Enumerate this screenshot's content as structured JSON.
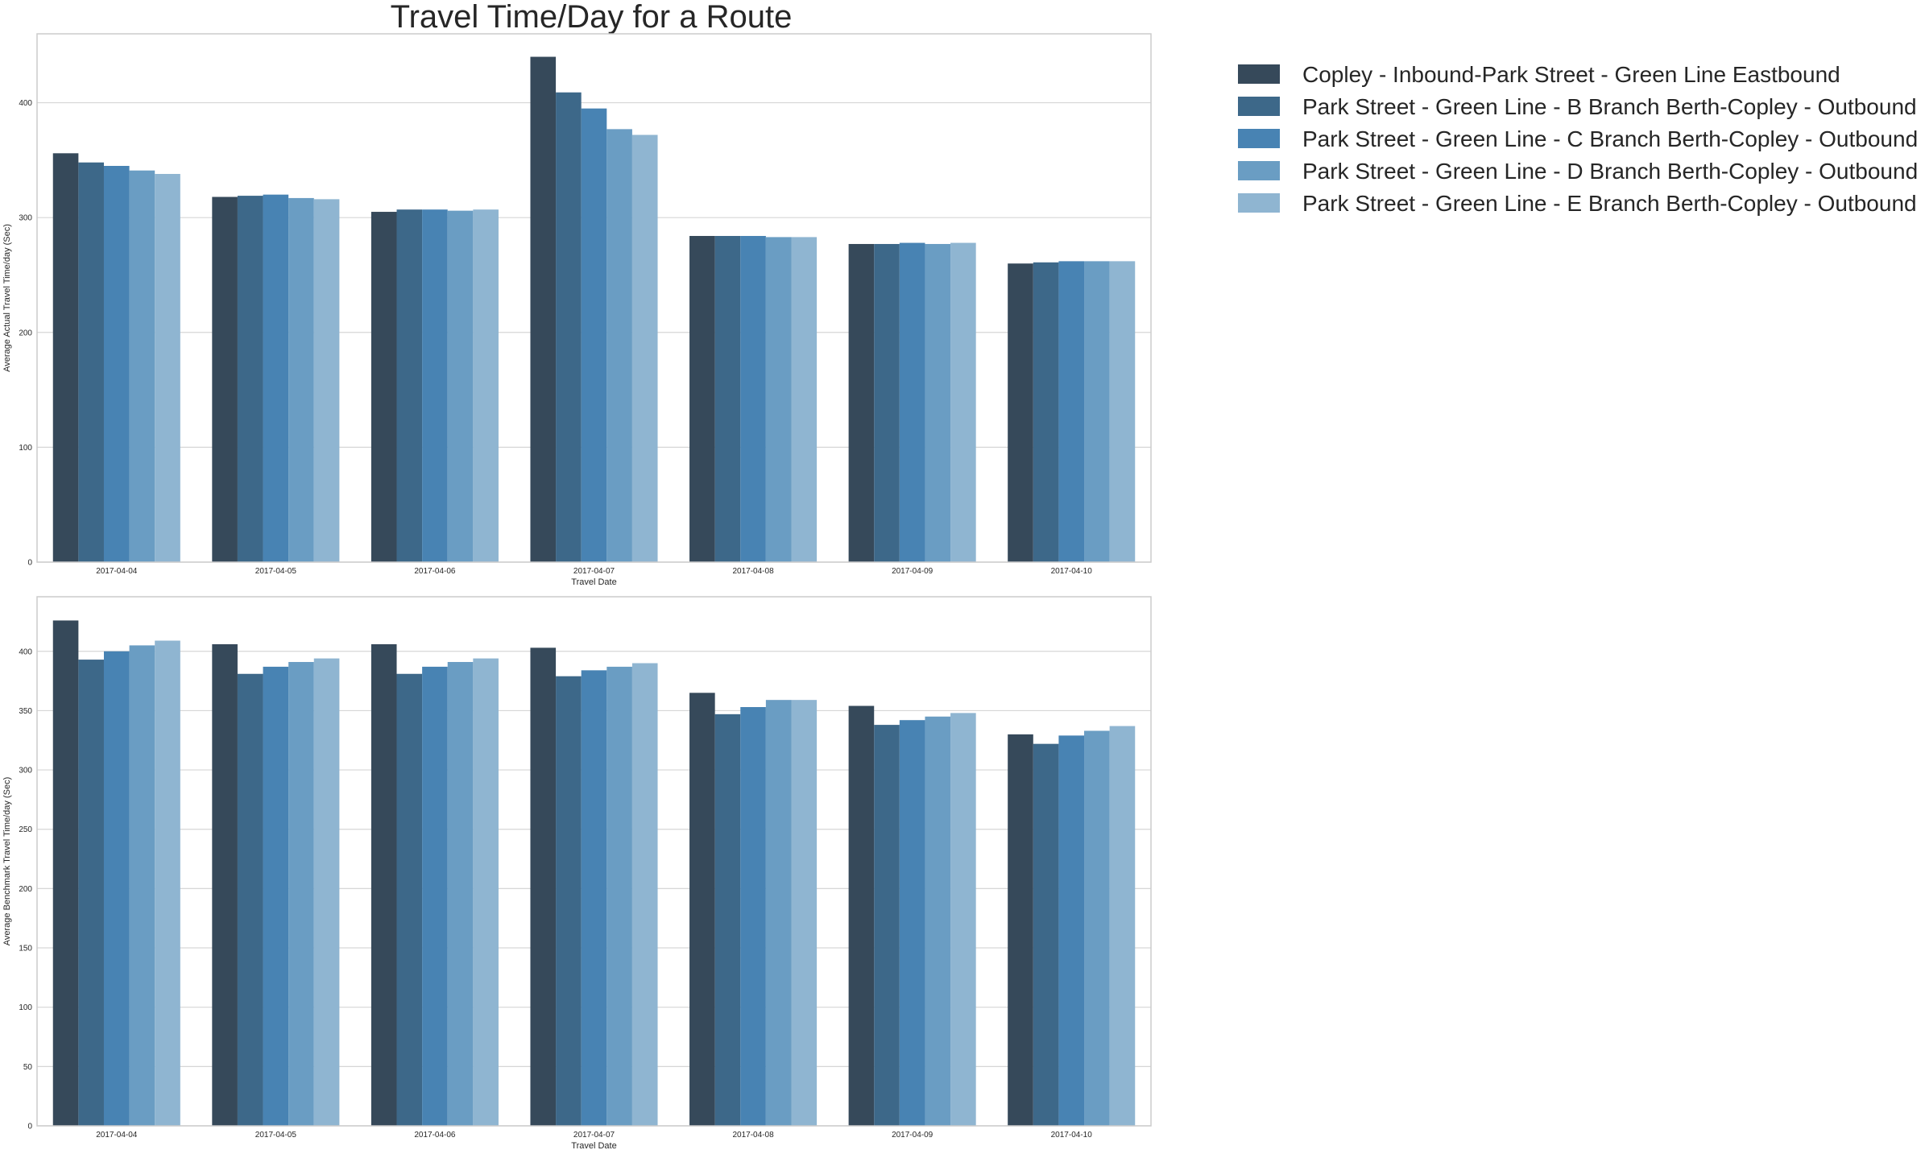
{
  "title": "Travel Time/Day for a Route",
  "legend": {
    "placement": "upper-right-outside",
    "entries": [
      "Copley - Inbound-Park Street - Green Line Eastbound",
      "Park Street - Green Line - B Branch Berth-Copley - Outbound",
      "Park Street - Green Line - C Branch Berth-Copley - Outbound",
      "Park Street - Green Line - D Branch Berth-Copley - Outbound",
      "Park Street - Green Line - E Branch Berth-Copley - Outbound"
    ]
  },
  "colors": [
    "#36495a",
    "#3d6889",
    "#4883b3",
    "#6a9dc3",
    "#8fb5d1"
  ],
  "chart_data": [
    {
      "type": "bar",
      "xlabel": "Travel Date",
      "ylabel": "Average Actual Travel Time/day (Sec)",
      "ylim": [
        0,
        460
      ],
      "yticks": [
        0,
        100,
        200,
        300,
        400
      ],
      "grid": true,
      "categories": [
        "2017-04-04",
        "2017-04-05",
        "2017-04-06",
        "2017-04-07",
        "2017-04-08",
        "2017-04-09",
        "2017-04-10"
      ],
      "series": [
        {
          "name": "Copley - Inbound-Park Street - Green Line Eastbound",
          "values": [
            356,
            318,
            305,
            440,
            284,
            277,
            260
          ]
        },
        {
          "name": "Park Street - Green Line - B Branch Berth-Copley - Outbound",
          "values": [
            348,
            319,
            307,
            409,
            284,
            277,
            261
          ]
        },
        {
          "name": "Park Street - Green Line - C Branch Berth-Copley - Outbound",
          "values": [
            345,
            320,
            307,
            395,
            284,
            278,
            262
          ]
        },
        {
          "name": "Park Street - Green Line - D Branch Berth-Copley - Outbound",
          "values": [
            341,
            317,
            306,
            377,
            283,
            277,
            262
          ]
        },
        {
          "name": "Park Street - Green Line - E Branch Berth-Copley - Outbound",
          "values": [
            338,
            316,
            307,
            372,
            283,
            278,
            262
          ]
        }
      ]
    },
    {
      "type": "bar",
      "xlabel": "Travel Date",
      "ylabel": "Average Benchmark Travel Time/day (Sec)",
      "ylim": [
        0,
        446
      ],
      "yticks": [
        0,
        50,
        100,
        150,
        200,
        250,
        300,
        350,
        400
      ],
      "grid": true,
      "categories": [
        "2017-04-04",
        "2017-04-05",
        "2017-04-06",
        "2017-04-07",
        "2017-04-08",
        "2017-04-09",
        "2017-04-10"
      ],
      "series": [
        {
          "name": "Copley - Inbound-Park Street - Green Line Eastbound",
          "values": [
            426,
            406,
            406,
            403,
            365,
            354,
            330
          ]
        },
        {
          "name": "Park Street - Green Line - B Branch Berth-Copley - Outbound",
          "values": [
            393,
            381,
            381,
            379,
            347,
            338,
            322
          ]
        },
        {
          "name": "Park Street - Green Line - C Branch Berth-Copley - Outbound",
          "values": [
            400,
            387,
            387,
            384,
            353,
            342,
            329
          ]
        },
        {
          "name": "Park Street - Green Line - D Branch Berth-Copley - Outbound",
          "values": [
            405,
            391,
            391,
            387,
            359,
            345,
            333
          ]
        },
        {
          "name": "Park Street - Green Line - E Branch Berth-Copley - Outbound",
          "values": [
            409,
            394,
            394,
            390,
            359,
            348,
            337
          ]
        }
      ]
    }
  ]
}
